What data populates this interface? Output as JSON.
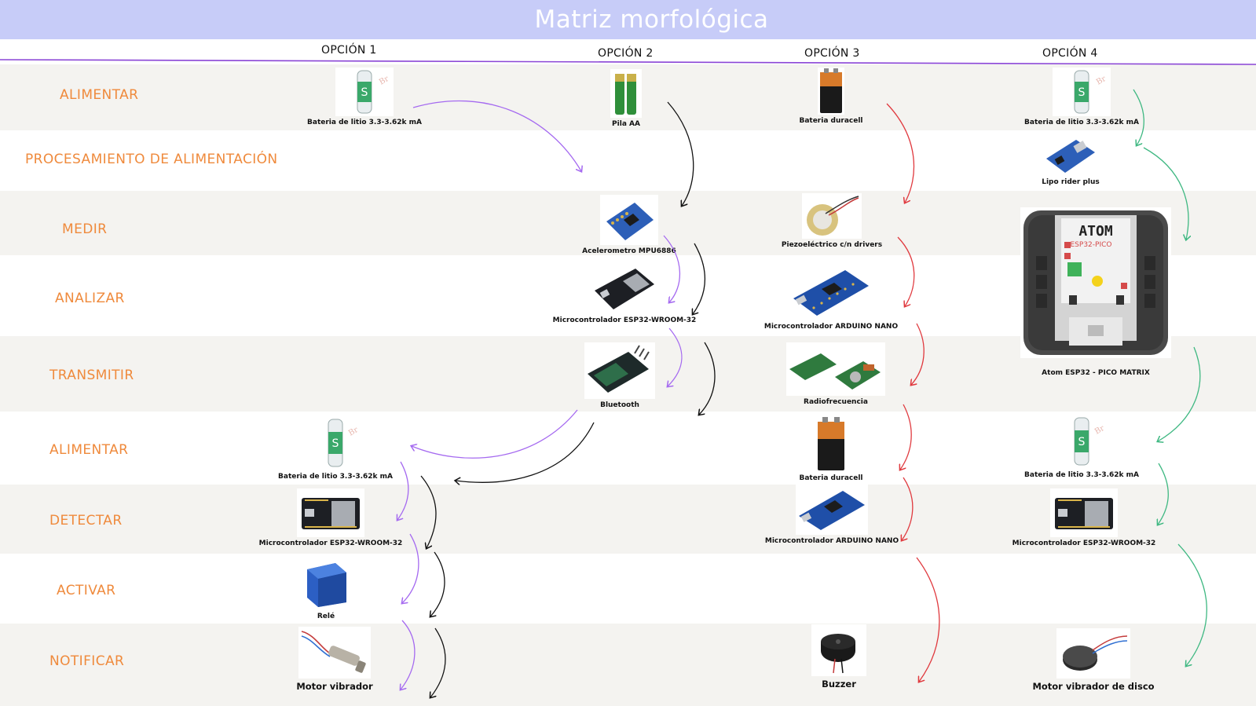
{
  "title": "Matriz morfológica",
  "options": [
    "OPCIÓN 1",
    "OPCIÓN 2",
    "OPCIÓN 3",
    "OPCIÓN 4"
  ],
  "rows": [
    {
      "label": "ALIMENTAR"
    },
    {
      "label": "PROCESAMIENTO DE ALIMENTACIÓN"
    },
    {
      "label": "MEDIR"
    },
    {
      "label": "ANALIZAR"
    },
    {
      "label": "TRANSMITIR"
    },
    {
      "label": "ALIMENTAR"
    },
    {
      "label": "DETECTAR"
    },
    {
      "label": "ACTIVAR"
    },
    {
      "label": "NOTIFICAR"
    }
  ],
  "components": {
    "o1_alimentar_top": "Bateria de litio 3.3-3.62k mA",
    "o2_alimentar": "Pila AA",
    "o3_alimentar": "Bateria duracell",
    "o4_alimentar": "Bateria de litio 3.3-3.62k mA",
    "o4_procesamiento": "Lipo rider plus",
    "o2_medir": "Acelerometro MPU6886",
    "o3_medir": "Piezoeléctrico c/n drivers",
    "o2_analizar": "Microcontrolador  ESP32-WROOM-32",
    "o3_analizar": "Microcontrolador ARDUINO NANO",
    "o4_atom": "Atom ESP32 - PICO MATRIX",
    "o2_transmitir": "Bluetooth",
    "o3_transmitir": "Radiofrecuencia",
    "o1_alimentar": "Bateria de litio 3.3-3.62k mA",
    "o3_alimentar2": "Bateria duracell",
    "o4_alimentar2": "Bateria de litio 3.3-3.62k mA",
    "o1_detectar": "Microcontrolador ESP32-WROOM-32",
    "o3_detectar": "Microcontrolador ARDUINO NANO",
    "o4_detectar": "Microcontrolador ESP32-WROOM-32",
    "o1_activar": "Relé",
    "o1_notificar": "Motor vibrador",
    "o3_notificar": "Buzzer",
    "o4_notificar": "Motor vibrador de disco"
  },
  "atom_screen": {
    "logo": "ATOM",
    "chip": "ESP32-PICO"
  },
  "colors": {
    "header": "#c7ccf8",
    "row_label": "#ef8a3c",
    "divider": "#8a45d6",
    "option1_path": "#a56af0",
    "option2_path": "#111111",
    "option3_path": "#e0393e",
    "option4_path": "#3fb882"
  }
}
